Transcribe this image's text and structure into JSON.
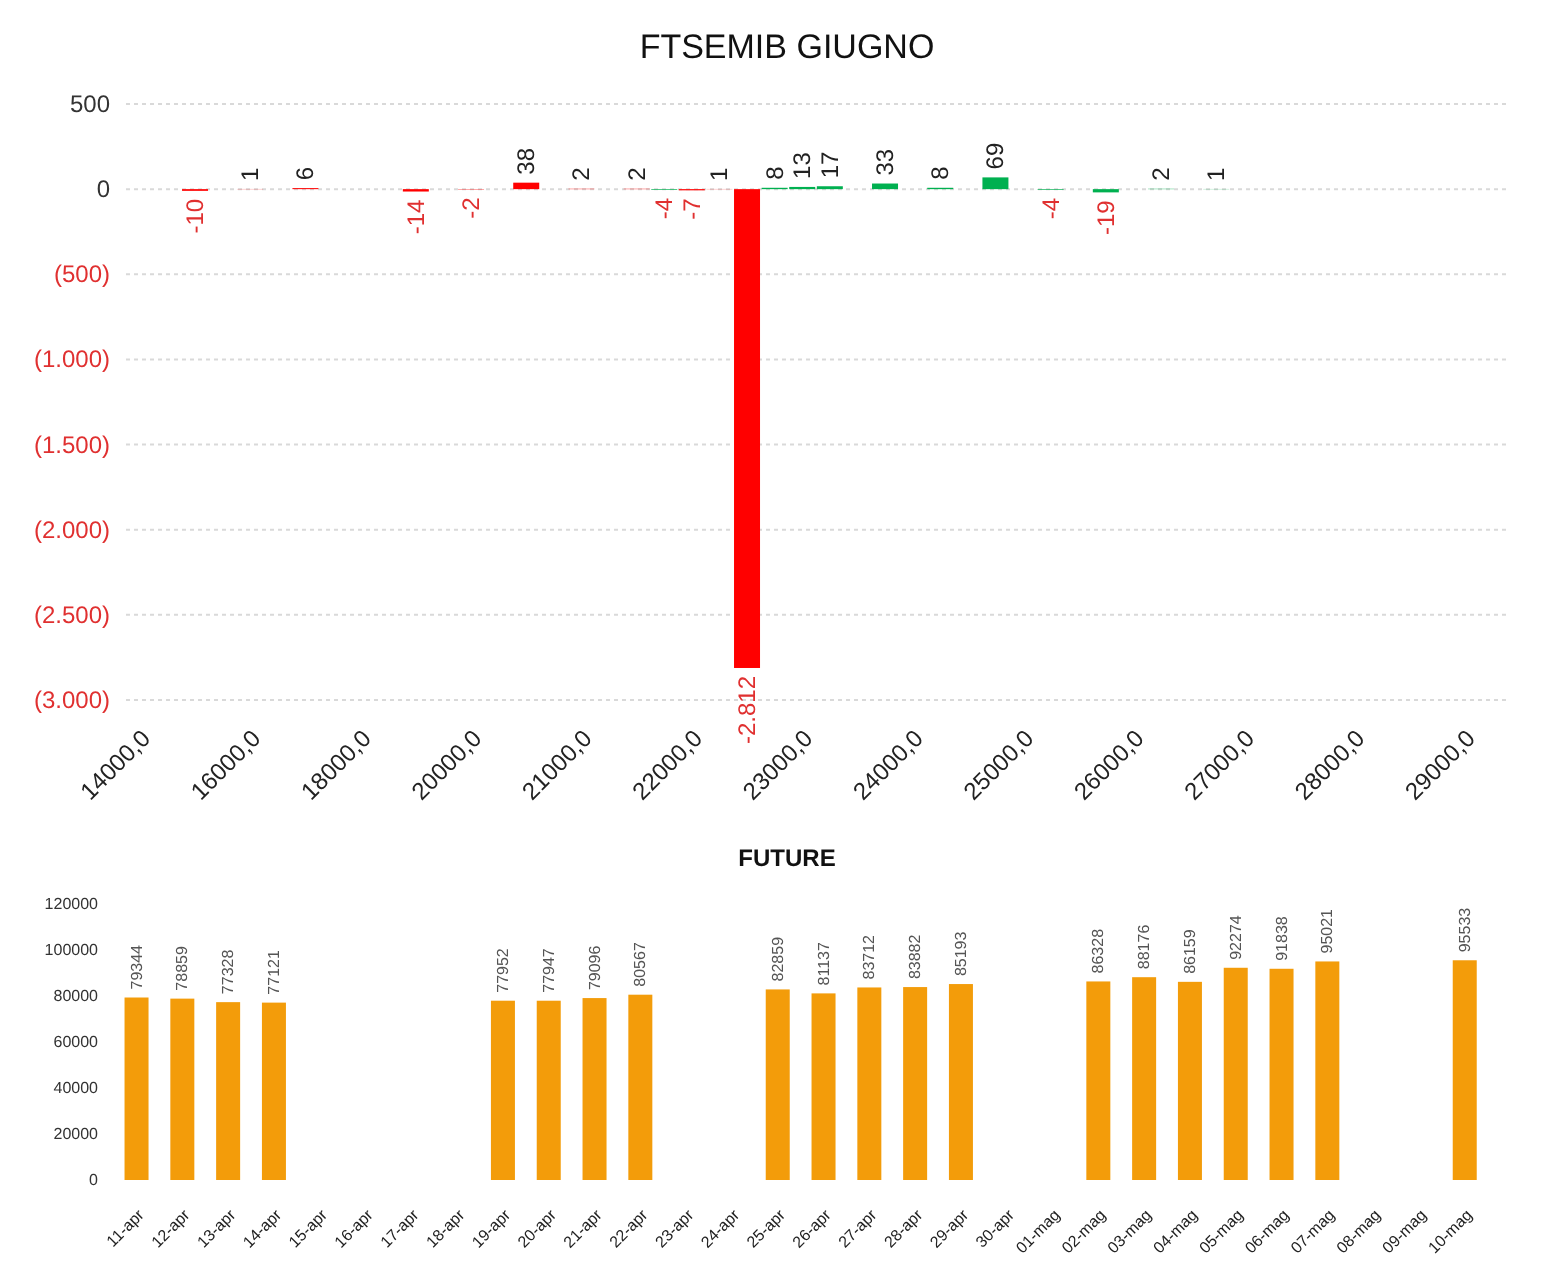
{
  "chart_data": [
    {
      "type": "bar",
      "title": "FTSEMIB GIUGNO",
      "categories": [
        "14000,0",
        null,
        null,
        null,
        "16000,0",
        null,
        null,
        null,
        "18000,0",
        null,
        null,
        null,
        "20000,0",
        null,
        null,
        null,
        "21000,0",
        null,
        null,
        null,
        "22000,0",
        null,
        null,
        null,
        "23000,0",
        null,
        null,
        null,
        "24000,0",
        null,
        null,
        null,
        "25000,0",
        null,
        null,
        null,
        "26000,0",
        null,
        null,
        null,
        "27000,0",
        null,
        null,
        null,
        "28000,0",
        null,
        null,
        null,
        "29000,0",
        null
      ],
      "values": [
        null,
        null,
        -10,
        null,
        1,
        null,
        6,
        null,
        null,
        null,
        -14,
        null,
        -2,
        null,
        38,
        null,
        2,
        null,
        2,
        -4,
        -7,
        1,
        -2812,
        8,
        13,
        17,
        null,
        33,
        null,
        8,
        null,
        69,
        null,
        -4,
        null,
        -19,
        null,
        2,
        null,
        1,
        null,
        null,
        null,
        null,
        null,
        null,
        null,
        null,
        null,
        null
      ],
      "colors": [
        null,
        null,
        "#ff0000",
        null,
        "#ff0000",
        null,
        "#ff0000",
        null,
        null,
        null,
        "#ff0000",
        null,
        "#ff0000",
        null,
        "#ff0000",
        null,
        "#ff0000",
        null,
        "#ff0000",
        "#00b050",
        "#ff0000",
        "#ff0000",
        "#ff0000",
        "#00b050",
        "#00b050",
        "#00b050",
        null,
        "#00b050",
        null,
        "#00b050",
        null,
        "#00b050",
        null,
        "#00b050",
        null,
        "#00b050",
        null,
        "#00b050",
        null,
        "#00b050",
        null,
        null,
        null,
        null,
        null,
        null,
        null,
        null,
        null,
        null
      ],
      "value_labels": [
        null,
        null,
        "-10",
        null,
        "1",
        null,
        "6",
        null,
        null,
        null,
        "-14",
        null,
        "-2",
        null,
        "38",
        null,
        "2",
        null,
        "2",
        "-4",
        "-7",
        "1",
        "-2.812",
        "8",
        "13",
        "17",
        null,
        "33",
        null,
        "8",
        null,
        "69",
        null,
        "-4",
        null,
        "-19",
        null,
        "2",
        null,
        "1",
        null,
        null,
        null,
        null,
        null,
        null,
        null,
        null,
        null,
        null
      ],
      "ylim": [
        -3000,
        500
      ],
      "yticks": [
        500,
        0,
        {
          "value": -500,
          "label": "(500)"
        },
        {
          "value": -1000,
          "label": "(1.000)"
        },
        {
          "value": -1500,
          "label": "(1.500)"
        },
        {
          "value": -2000,
          "label": "(2.000)"
        },
        {
          "value": -2500,
          "label": "(2.500)"
        },
        {
          "value": -3000,
          "label": "(3.000)"
        }
      ],
      "grid": "y"
    },
    {
      "type": "bar",
      "title": "FUTURE",
      "categories": [
        "11-apr",
        "12-apr",
        "13-apr",
        "14-apr",
        "15-apr",
        "16-apr",
        "17-apr",
        "18-apr",
        "19-apr",
        "20-apr",
        "21-apr",
        "22-apr",
        "23-apr",
        "24-apr",
        "25-apr",
        "26-apr",
        "27-apr",
        "28-apr",
        "29-apr",
        "30-apr",
        "01-mag",
        "02-mag",
        "03-mag",
        "04-mag",
        "05-mag",
        "06-mag",
        "07-mag",
        "08-mag",
        "09-mag",
        "10-mag"
      ],
      "values": [
        79344,
        78859,
        77328,
        77121,
        null,
        null,
        null,
        null,
        77952,
        77947,
        79096,
        80567,
        null,
        null,
        82859,
        81137,
        83712,
        83882,
        85193,
        null,
        null,
        86328,
        88176,
        86159,
        92274,
        91838,
        95021,
        null,
        null,
        95533
      ],
      "color": "#f39c0a",
      "ylim": [
        0,
        120000
      ],
      "yticks": [
        0,
        20000,
        40000,
        60000,
        80000,
        100000,
        120000
      ],
      "data_labels": true
    }
  ]
}
